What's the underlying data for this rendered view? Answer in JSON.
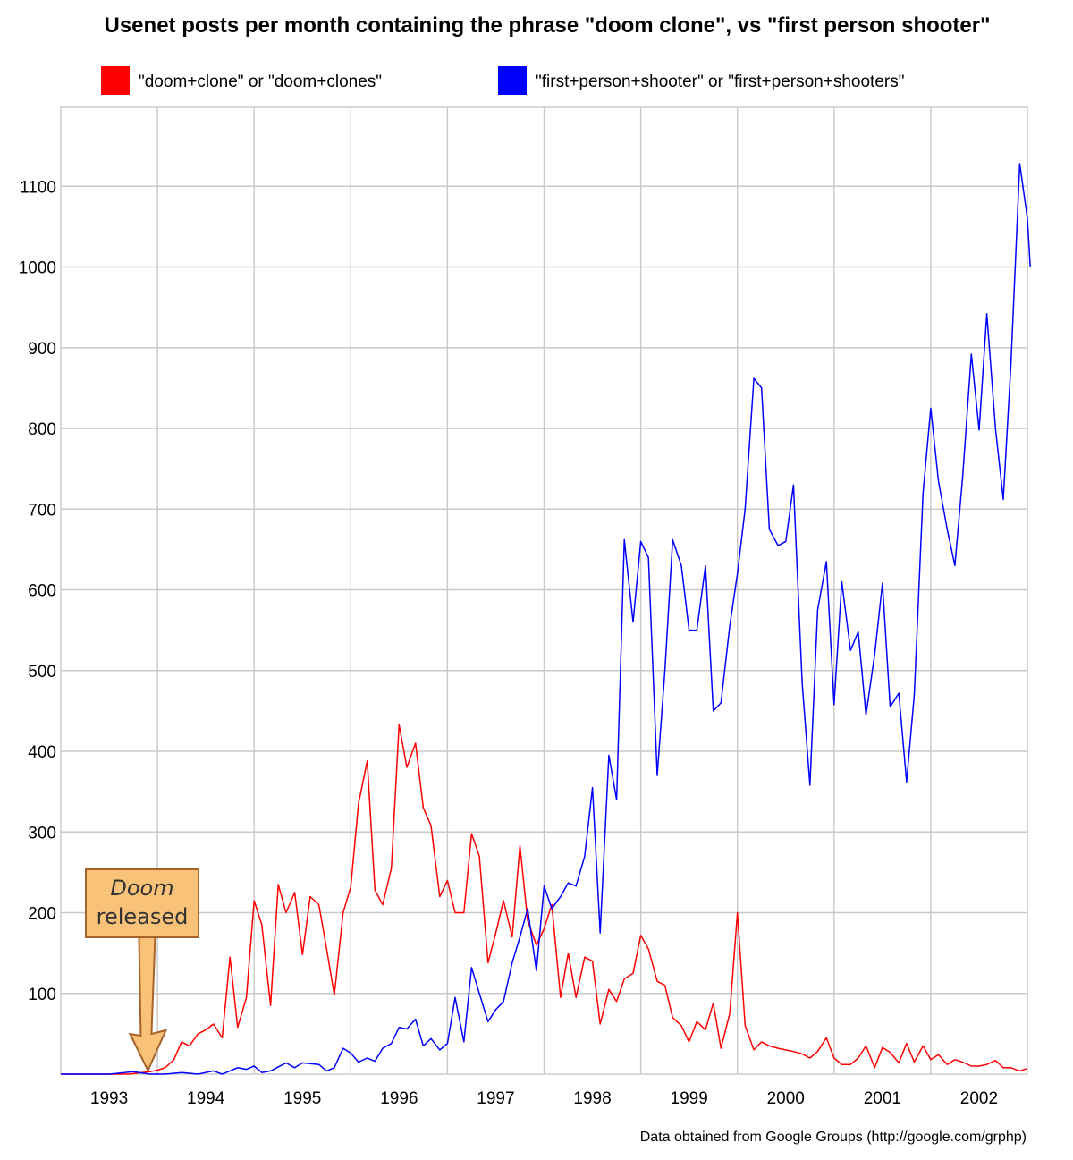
{
  "chart_data": {
    "type": "line",
    "title": "Usenet posts per month containing the phrase \"doom clone\", vs \"first person shooter\"",
    "xlabel": "",
    "ylabel": "",
    "x_ticks": [
      "1993",
      "1994",
      "1995",
      "1996",
      "1997",
      "1998",
      "1999",
      "2000",
      "2001",
      "2002"
    ],
    "y_ticks": [
      100,
      200,
      300,
      400,
      500,
      600,
      700,
      800,
      900,
      1000,
      1100
    ],
    "ylim": [
      0,
      1200
    ],
    "xlim": [
      1992.5,
      2002.5
    ],
    "grid": true,
    "legend_position": "top",
    "source_note": "Data obtained from Google Groups (http://google.com/grphp)",
    "annotation": {
      "line1": "Doom",
      "line2": "released",
      "x": 1993.42
    },
    "series": [
      {
        "name": "\"doom+clone\" or \"doom+clones\"",
        "color": "#ff0000",
        "points": [
          [
            1992.5,
            0
          ],
          [
            1992.75,
            0
          ],
          [
            1993.0,
            0
          ],
          [
            1993.2,
            0
          ],
          [
            1993.42,
            3
          ],
          [
            1993.5,
            5
          ],
          [
            1993.58,
            8
          ],
          [
            1993.67,
            18
          ],
          [
            1993.75,
            40
          ],
          [
            1993.83,
            35
          ],
          [
            1993.92,
            50
          ],
          [
            1994.0,
            55
          ],
          [
            1994.08,
            62
          ],
          [
            1994.17,
            45
          ],
          [
            1994.25,
            145
          ],
          [
            1994.33,
            58
          ],
          [
            1994.42,
            95
          ],
          [
            1994.5,
            215
          ],
          [
            1994.58,
            185
          ],
          [
            1994.67,
            85
          ],
          [
            1994.75,
            235
          ],
          [
            1994.83,
            200
          ],
          [
            1994.92,
            225
          ],
          [
            1995.0,
            148
          ],
          [
            1995.08,
            220
          ],
          [
            1995.17,
            210
          ],
          [
            1995.25,
            155
          ],
          [
            1995.33,
            98
          ],
          [
            1995.42,
            200
          ],
          [
            1995.5,
            232
          ],
          [
            1995.58,
            335
          ],
          [
            1995.67,
            388
          ],
          [
            1995.75,
            228
          ],
          [
            1995.83,
            210
          ],
          [
            1995.92,
            255
          ],
          [
            1996.0,
            433
          ],
          [
            1996.08,
            380
          ],
          [
            1996.17,
            410
          ],
          [
            1996.25,
            330
          ],
          [
            1996.33,
            308
          ],
          [
            1996.42,
            220
          ],
          [
            1996.5,
            240
          ],
          [
            1996.58,
            200
          ],
          [
            1996.67,
            200
          ],
          [
            1996.75,
            298
          ],
          [
            1996.83,
            270
          ],
          [
            1996.92,
            138
          ],
          [
            1997.0,
            175
          ],
          [
            1997.08,
            215
          ],
          [
            1997.17,
            170
          ],
          [
            1997.25,
            283
          ],
          [
            1997.33,
            190
          ],
          [
            1997.42,
            160
          ],
          [
            1997.5,
            180
          ],
          [
            1997.58,
            210
          ],
          [
            1997.67,
            95
          ],
          [
            1997.75,
            150
          ],
          [
            1997.83,
            95
          ],
          [
            1997.92,
            145
          ],
          [
            1998.0,
            140
          ],
          [
            1998.08,
            62
          ],
          [
            1998.17,
            105
          ],
          [
            1998.25,
            90
          ],
          [
            1998.33,
            118
          ],
          [
            1998.42,
            125
          ],
          [
            1998.5,
            172
          ],
          [
            1998.58,
            155
          ],
          [
            1998.67,
            115
          ],
          [
            1998.75,
            110
          ],
          [
            1998.83,
            70
          ],
          [
            1998.92,
            60
          ],
          [
            1999.0,
            40
          ],
          [
            1999.08,
            65
          ],
          [
            1999.17,
            55
          ],
          [
            1999.25,
            88
          ],
          [
            1999.33,
            32
          ],
          [
            1999.42,
            75
          ],
          [
            1999.5,
            200
          ],
          [
            1999.58,
            60
          ],
          [
            1999.67,
            30
          ],
          [
            1999.75,
            40
          ],
          [
            1999.83,
            35
          ],
          [
            1999.92,
            32
          ],
          [
            2000.0,
            30
          ],
          [
            2000.08,
            28
          ],
          [
            2000.17,
            25
          ],
          [
            2000.25,
            20
          ],
          [
            2000.33,
            28
          ],
          [
            2000.42,
            45
          ],
          [
            2000.5,
            20
          ],
          [
            2000.58,
            12
          ],
          [
            2000.67,
            12
          ],
          [
            2000.75,
            20
          ],
          [
            2000.83,
            35
          ],
          [
            2000.92,
            8
          ],
          [
            2001.0,
            33
          ],
          [
            2001.08,
            27
          ],
          [
            2001.17,
            14
          ],
          [
            2001.25,
            38
          ],
          [
            2001.33,
            15
          ],
          [
            2001.42,
            35
          ],
          [
            2001.5,
            18
          ],
          [
            2001.58,
            24
          ],
          [
            2001.67,
            12
          ],
          [
            2001.75,
            18
          ],
          [
            2001.83,
            15
          ],
          [
            2001.92,
            10
          ],
          [
            2002.0,
            10
          ],
          [
            2002.08,
            12
          ],
          [
            2002.17,
            17
          ],
          [
            2002.25,
            8
          ],
          [
            2002.33,
            8
          ],
          [
            2002.42,
            4
          ],
          [
            2002.5,
            7
          ]
        ]
      },
      {
        "name": "\"first+person+shooter\" or \"first+person+shooters\"",
        "color": "#0000ff",
        "points": [
          [
            1992.5,
            0
          ],
          [
            1992.75,
            0
          ],
          [
            1993.0,
            0
          ],
          [
            1993.25,
            3
          ],
          [
            1993.42,
            0
          ],
          [
            1993.58,
            0
          ],
          [
            1993.75,
            2
          ],
          [
            1993.92,
            0
          ],
          [
            1994.08,
            4
          ],
          [
            1994.17,
            0
          ],
          [
            1994.33,
            8
          ],
          [
            1994.42,
            6
          ],
          [
            1994.5,
            10
          ],
          [
            1994.58,
            2
          ],
          [
            1994.67,
            4
          ],
          [
            1994.83,
            14
          ],
          [
            1994.92,
            8
          ],
          [
            1995.0,
            14
          ],
          [
            1995.17,
            12
          ],
          [
            1995.25,
            4
          ],
          [
            1995.33,
            8
          ],
          [
            1995.42,
            32
          ],
          [
            1995.5,
            26
          ],
          [
            1995.58,
            15
          ],
          [
            1995.67,
            20
          ],
          [
            1995.75,
            16
          ],
          [
            1995.83,
            32
          ],
          [
            1995.92,
            38
          ],
          [
            1996.0,
            58
          ],
          [
            1996.08,
            56
          ],
          [
            1996.17,
            68
          ],
          [
            1996.25,
            35
          ],
          [
            1996.33,
            44
          ],
          [
            1996.42,
            30
          ],
          [
            1996.5,
            38
          ],
          [
            1996.58,
            95
          ],
          [
            1996.67,
            40
          ],
          [
            1996.75,
            132
          ],
          [
            1996.83,
            100
          ],
          [
            1996.92,
            65
          ],
          [
            1997.0,
            80
          ],
          [
            1997.08,
            90
          ],
          [
            1997.17,
            138
          ],
          [
            1997.25,
            170
          ],
          [
            1997.33,
            205
          ],
          [
            1997.42,
            128
          ],
          [
            1997.5,
            233
          ],
          [
            1997.58,
            205
          ],
          [
            1997.67,
            220
          ],
          [
            1997.75,
            237
          ],
          [
            1997.83,
            233
          ],
          [
            1997.92,
            270
          ],
          [
            1998.0,
            355
          ],
          [
            1998.08,
            175
          ],
          [
            1998.17,
            395
          ],
          [
            1998.25,
            340
          ],
          [
            1998.33,
            662
          ],
          [
            1998.42,
            560
          ],
          [
            1998.5,
            660
          ],
          [
            1998.58,
            640
          ],
          [
            1998.67,
            370
          ],
          [
            1998.75,
            500
          ],
          [
            1998.83,
            662
          ],
          [
            1998.92,
            630
          ],
          [
            1999.0,
            550
          ],
          [
            1999.08,
            550
          ],
          [
            1999.17,
            630
          ],
          [
            1999.25,
            450
          ],
          [
            1999.33,
            460
          ],
          [
            1999.42,
            555
          ],
          [
            1999.5,
            620
          ],
          [
            1999.58,
            700
          ],
          [
            1999.67,
            862
          ],
          [
            1999.75,
            850
          ],
          [
            1999.83,
            675
          ],
          [
            1999.92,
            655
          ],
          [
            2000.0,
            660
          ],
          [
            2000.08,
            730
          ],
          [
            2000.17,
            485
          ],
          [
            2000.25,
            358
          ],
          [
            2000.33,
            575
          ],
          [
            2000.42,
            635
          ],
          [
            2000.5,
            458
          ],
          [
            2000.58,
            610
          ],
          [
            2000.67,
            525
          ],
          [
            2000.75,
            548
          ],
          [
            2000.83,
            445
          ],
          [
            2000.92,
            520
          ],
          [
            2001.0,
            608
          ],
          [
            2001.08,
            455
          ],
          [
            2001.17,
            472
          ],
          [
            2001.25,
            362
          ],
          [
            2001.33,
            470
          ],
          [
            2001.42,
            720
          ],
          [
            2001.5,
            825
          ],
          [
            2001.58,
            735
          ],
          [
            2001.67,
            675
          ],
          [
            2001.75,
            630
          ],
          [
            2001.83,
            740
          ],
          [
            2001.92,
            892
          ],
          [
            2002.0,
            798
          ],
          [
            2002.08,
            942
          ],
          [
            2002.17,
            800
          ],
          [
            2002.25,
            712
          ],
          [
            2002.33,
            880
          ],
          [
            2002.42,
            1128
          ],
          [
            2002.5,
            1060
          ],
          [
            2002.53,
            1000
          ]
        ]
      }
    ]
  }
}
